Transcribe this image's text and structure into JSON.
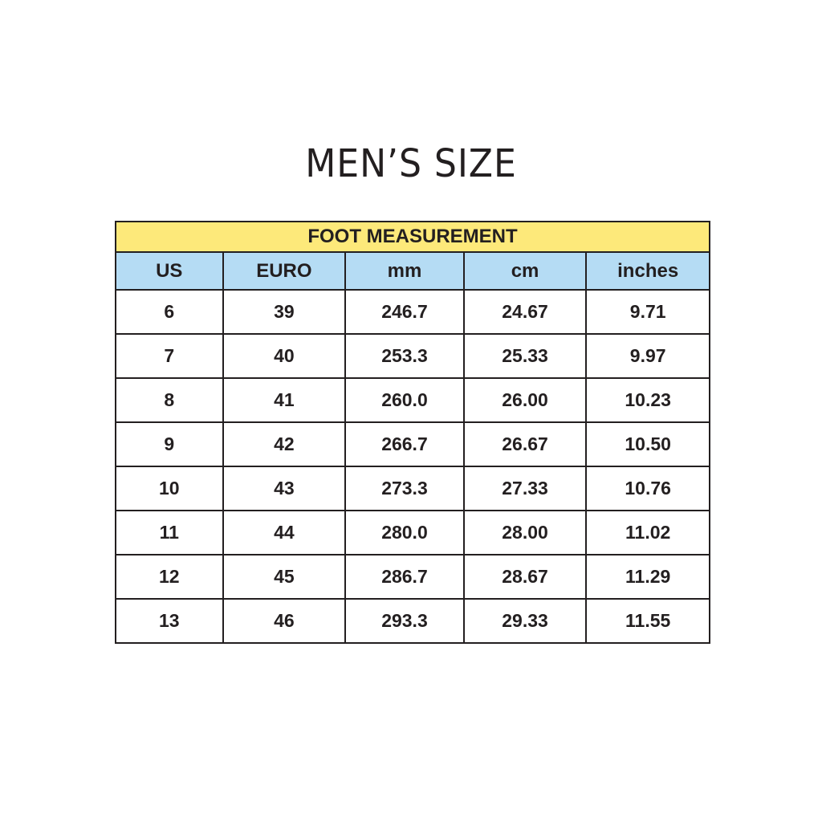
{
  "title": "MEN’S SIZE",
  "table": {
    "group_header": "FOOT MEASUREMENT",
    "columns": [
      "US",
      "EURO",
      "mm",
      "cm",
      "inches"
    ],
    "rows": [
      [
        "6",
        "39",
        "246.7",
        "24.67",
        "9.71"
      ],
      [
        "7",
        "40",
        "253.3",
        "25.33",
        "9.97"
      ],
      [
        "8",
        "41",
        "260.0",
        "26.00",
        "10.23"
      ],
      [
        "9",
        "42",
        "266.7",
        "26.67",
        "10.50"
      ],
      [
        "10",
        "43",
        "273.3",
        "27.33",
        "10.76"
      ],
      [
        "11",
        "44",
        "280.0",
        "28.00",
        "11.02"
      ],
      [
        "12",
        "45",
        "286.7",
        "28.67",
        "11.29"
      ],
      [
        "13",
        "46",
        "293.3",
        "29.33",
        "11.55"
      ]
    ]
  },
  "colors": {
    "group_header_bg": "#fde97a",
    "column_header_bg": "#b5dcf4",
    "text": "#231f20"
  }
}
